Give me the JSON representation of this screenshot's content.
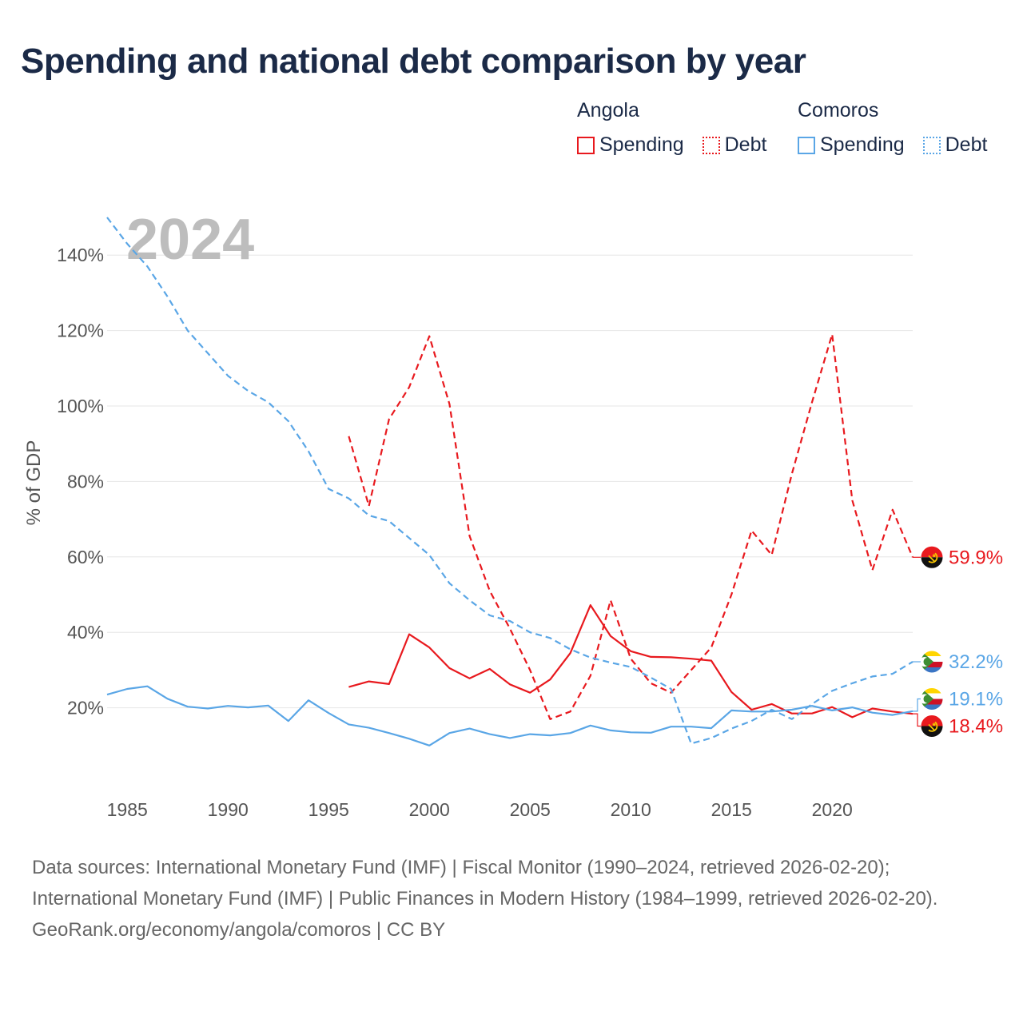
{
  "title": "Spending and national debt comparison by year",
  "legend": {
    "groups": [
      {
        "country": "Angola",
        "spending_label": "Spending",
        "debt_label": "Debt",
        "color": "#e8191e"
      },
      {
        "country": "Comoros",
        "spending_label": "Spending",
        "debt_label": "Debt",
        "color": "#5aa6e6"
      }
    ]
  },
  "year_overlay": "2024",
  "chart_data": {
    "type": "line",
    "title": "Spending and national debt comparison by year",
    "xlabel": "",
    "ylabel": "% of GDP",
    "xlim": [
      1984,
      2024
    ],
    "ylim": [
      0,
      150
    ],
    "x_ticks": [
      1985,
      1990,
      1995,
      2000,
      2005,
      2010,
      2015,
      2020
    ],
    "y_ticks": [
      20,
      40,
      60,
      80,
      100,
      120,
      140
    ],
    "y_tick_labels": [
      "20%",
      "40%",
      "60%",
      "80%",
      "100%",
      "120%",
      "140%"
    ],
    "series": [
      {
        "name": "Angola Spending",
        "country": "Angola",
        "metric": "Spending",
        "color": "#e8191e",
        "dash": "solid",
        "x": [
          1996,
          1997,
          1998,
          1999,
          2000,
          2001,
          2002,
          2003,
          2004,
          2005,
          2006,
          2007,
          2008,
          2009,
          2010,
          2011,
          2012,
          2013,
          2014,
          2015,
          2016,
          2017,
          2018,
          2019,
          2020,
          2021,
          2022,
          2023,
          2024
        ],
        "values": [
          25.5,
          27,
          26.3,
          39.5,
          36,
          30.5,
          27.8,
          30.3,
          26.2,
          24,
          27.5,
          34.5,
          47.2,
          39,
          35,
          33.5,
          33.4,
          33,
          32.5,
          24.2,
          19.5,
          21,
          18.5,
          18.5,
          20.2,
          17.5,
          19.8,
          19,
          18.4
        ]
      },
      {
        "name": "Angola Debt",
        "country": "Angola",
        "metric": "Debt",
        "color": "#e8191e",
        "dash": "dashed",
        "x": [
          1996,
          1997,
          1998,
          1999,
          2000,
          2001,
          2002,
          2003,
          2004,
          2005,
          2006,
          2007,
          2008,
          2009,
          2010,
          2011,
          2012,
          2013,
          2014,
          2015,
          2016,
          2017,
          2018,
          2019,
          2020,
          2021,
          2022,
          2023,
          2024
        ],
        "values": [
          92,
          73.5,
          96.5,
          105,
          118.5,
          100.5,
          65.5,
          51,
          41,
          30,
          17,
          19,
          28.5,
          48.5,
          33,
          26.5,
          24,
          30,
          36,
          50,
          67,
          60.5,
          82,
          101,
          119,
          75,
          56.5,
          72.5,
          59.9
        ]
      },
      {
        "name": "Comoros Spending",
        "country": "Comoros",
        "metric": "Spending",
        "color": "#5aa6e6",
        "dash": "solid",
        "x": [
          1984,
          1985,
          1986,
          1987,
          1988,
          1989,
          1990,
          1991,
          1992,
          1993,
          1994,
          1995,
          1996,
          1997,
          1998,
          1999,
          2000,
          2001,
          2002,
          2003,
          2004,
          2005,
          2006,
          2007,
          2008,
          2009,
          2010,
          2011,
          2012,
          2013,
          2014,
          2015,
          2016,
          2017,
          2018,
          2019,
          2020,
          2021,
          2022,
          2023,
          2024
        ],
        "values": [
          23.5,
          25,
          25.7,
          22.4,
          20.3,
          19.8,
          20.5,
          20.1,
          20.6,
          16.5,
          22,
          18.6,
          15.6,
          14.7,
          13.3,
          11.8,
          10,
          13.3,
          14.5,
          13,
          12,
          13,
          12.7,
          13.3,
          15.3,
          14,
          13.5,
          13.4,
          15,
          15,
          14.6,
          19.3,
          19,
          19,
          19.5,
          20.5,
          19.3,
          20.1,
          18.7,
          18.1,
          19.1
        ]
      },
      {
        "name": "Comoros Debt",
        "country": "Comoros",
        "metric": "Debt",
        "color": "#5aa6e6",
        "dash": "dashed",
        "x": [
          1984,
          1985,
          1986,
          1987,
          1988,
          1989,
          1990,
          1991,
          1992,
          1993,
          1994,
          1995,
          1996,
          1997,
          1998,
          1999,
          2000,
          2001,
          2002,
          2003,
          2004,
          2005,
          2006,
          2007,
          2008,
          2009,
          2010,
          2011,
          2012,
          2013,
          2014,
          2015,
          2016,
          2017,
          2018,
          2019,
          2020,
          2021,
          2022,
          2023,
          2024
        ],
        "values": [
          150,
          143,
          137,
          129,
          120,
          114,
          108,
          104,
          101,
          96,
          88,
          78,
          75.5,
          71,
          69.5,
          65,
          60.5,
          53,
          48.5,
          44.5,
          43,
          40,
          38.5,
          35.5,
          33.3,
          32,
          30.8,
          28,
          25,
          10.5,
          12,
          14.5,
          16.5,
          19.5,
          17,
          21,
          24.5,
          26.5,
          28.3,
          29,
          32.2
        ]
      }
    ],
    "end_labels": [
      {
        "country": "Angola",
        "metric": "Debt",
        "value": 59.9,
        "text": "59.9%",
        "color": "#e8191e",
        "flag": "angola-flag"
      },
      {
        "country": "Comoros",
        "metric": "Debt",
        "value": 32.2,
        "text": "32.2%",
        "color": "#5aa6e6",
        "flag": "comoros-flag"
      },
      {
        "country": "Comoros",
        "metric": "Spending",
        "value": 19.1,
        "text": "19.1%",
        "color": "#5aa6e6",
        "flag": "comoros-flag"
      },
      {
        "country": "Angola",
        "metric": "Spending",
        "value": 18.4,
        "text": "18.4%",
        "color": "#e8191e",
        "flag": "angola-flag"
      }
    ]
  },
  "footer": {
    "sources": "Data sources: International Monetary Fund (IMF) | Fiscal Monitor (1990–2024, retrieved 2026-02-20); International Monetary Fund (IMF) | Public Finances in Modern History (1984–1999, retrieved 2026-02-20).",
    "credit": "GeoRank.org/economy/angola/comoros | CC BY"
  }
}
